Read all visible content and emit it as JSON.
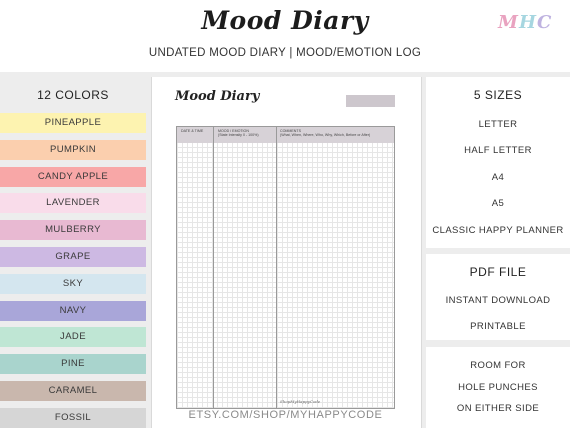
{
  "header": {
    "title": "Mood Diary",
    "subtitle": "UNDATED MOOD DIARY | MOOD/EMOTION LOG",
    "logo_letters": [
      "M",
      "H",
      "C"
    ],
    "logo_colors": [
      "#e9a3c0",
      "#a6d6e0",
      "#bfb3e0"
    ]
  },
  "colors_panel": {
    "title": "12 COLORS",
    "items": [
      {
        "label": "PINEAPPLE",
        "color": "#fdf3b0"
      },
      {
        "label": "PUMPKIN",
        "color": "#fbcfae"
      },
      {
        "label": "CANDY APPLE",
        "color": "#f8a7a7"
      },
      {
        "label": "LAVENDER",
        "color": "#f9dcea"
      },
      {
        "label": "MULBERRY",
        "color": "#e8b9d2"
      },
      {
        "label": "GRAPE",
        "color": "#cdb9e3"
      },
      {
        "label": "SKY",
        "color": "#d4e6ef"
      },
      {
        "label": "NAVY",
        "color": "#a9a6d9"
      },
      {
        "label": "JADE",
        "color": "#bfe6d4"
      },
      {
        "label": "PINE",
        "color": "#a9d4cd"
      },
      {
        "label": "CARAMEL",
        "color": "#c9b7ad"
      },
      {
        "label": "FOSSIL",
        "color": "#d6d6d6"
      }
    ]
  },
  "preview": {
    "page_title": "Mood Diary",
    "col1_line1": "DATE & TIME",
    "col2_line1": "MOOD / EMOTION",
    "col2_line2": "(State Intensity 0 - 100%)",
    "col3_line1": "COMMENTS",
    "col3_line2": "(What, When, Where, Who, Why, Which, Before or After)",
    "footer_mark": "ShopMyHappyCode"
  },
  "url": "ETSY.COM/SHOP/MYHAPPYCODE",
  "sizes_panel": {
    "title": "5 SIZES",
    "items": [
      "LETTER",
      "HALF LETTER",
      "A4",
      "A5",
      "CLASSIC HAPPY PLANNER"
    ]
  },
  "pdf_panel": {
    "title": "PDF FILE",
    "items": [
      "INSTANT DOWNLOAD",
      "PRINTABLE"
    ]
  },
  "holes_panel": {
    "items": [
      "ROOM FOR",
      "HOLE PUNCHES",
      "ON EITHER SIDE"
    ]
  }
}
